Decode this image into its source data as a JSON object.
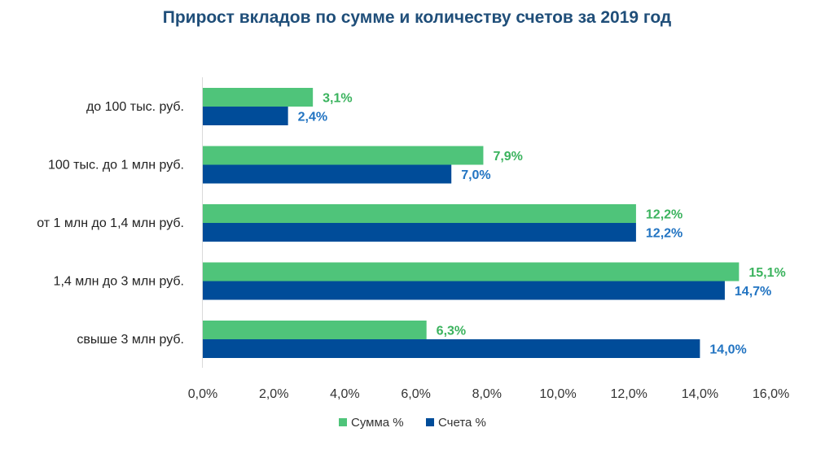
{
  "chart_data": {
    "type": "bar",
    "orientation": "horizontal",
    "title": "Прирост вкладов по сумме и количеству счетов за 2019 год",
    "categories": [
      "до 100 тыс. руб.",
      "100 тыс. до 1 млн руб.",
      "от 1 млн до 1,4 млн руб.",
      "1,4 млн до 3 млн руб.",
      "свыше 3 млн руб."
    ],
    "series": [
      {
        "name": "Сумма %",
        "color": "#4FC47A",
        "label_color": "#3BB35E",
        "values": [
          3.1,
          7.9,
          12.2,
          15.1,
          6.3
        ],
        "labels": [
          "3,1%",
          "7,9%",
          "12,2%",
          "15,1%",
          "6,3%"
        ]
      },
      {
        "name": "Счета %",
        "color": "#004C99",
        "label_color": "#2274C2",
        "values": [
          2.4,
          7.0,
          12.2,
          14.7,
          14.0
        ],
        "labels": [
          "2,4%",
          "7,0%",
          "12,2%",
          "14,7%",
          "14,0%"
        ]
      }
    ],
    "xlim": [
      0,
      16
    ],
    "xticks": [
      0,
      2,
      4,
      6,
      8,
      10,
      12,
      14,
      16
    ],
    "xtick_labels": [
      "0,0%",
      "2,0%",
      "4,0%",
      "6,0%",
      "8,0%",
      "10,0%",
      "12,0%",
      "14,0%",
      "16,0%"
    ],
    "grid": false,
    "legend_position": "bottom-center"
  }
}
